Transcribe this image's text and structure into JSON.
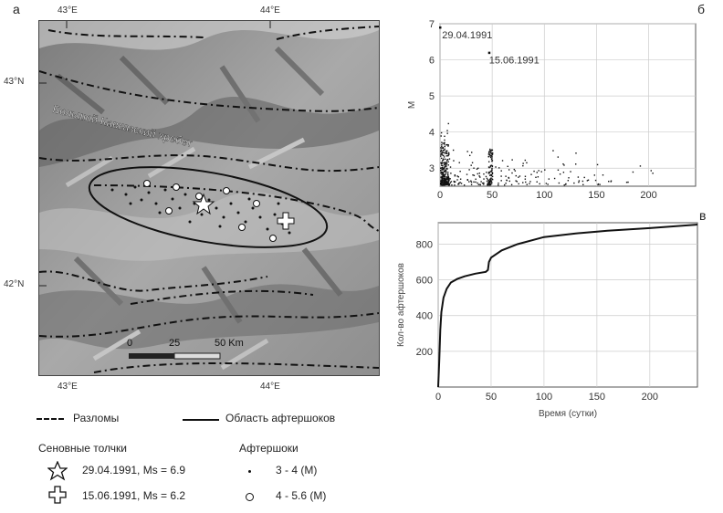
{
  "panels": {
    "a": "а",
    "b": "б",
    "c": "в"
  },
  "map": {
    "lon_top": [
      "43°E",
      "44°E"
    ],
    "lon_bottom": [
      "43°E",
      "44°E"
    ],
    "lat": [
      "43°N",
      "42°N"
    ],
    "ridge_label": "Большой Кавказский хребет",
    "scale": {
      "t0": "0",
      "t1": "25",
      "t2": "50 Km"
    }
  },
  "legend": {
    "faults": "Разломы",
    "aftershock_area": "Область афтершоков",
    "main_shocks_title": "Сеновные толчки",
    "aftershocks_title": "Афтершоки",
    "shock1": "29.04.1991, Ms = 6.9",
    "shock2": "15.06.1991, Ms = 6.2",
    "af1": "3 - 4 (M)",
    "af2": "4 - 5.6 (M)"
  },
  "chart_data": [
    {
      "type": "scatter",
      "panel": "б",
      "ylabel": "M",
      "xlim": [
        0,
        245
      ],
      "ylim": [
        2.5,
        7
      ],
      "xticks": [
        0,
        50,
        100,
        150,
        200
      ],
      "yticks": [
        3,
        4,
        5,
        6,
        7
      ],
      "grid": true,
      "annotations": [
        "29.04.1991",
        "15.06.1991"
      ],
      "highlight_points": [
        {
          "x": 0,
          "y": 6.9
        },
        {
          "x": 47,
          "y": 6.2
        }
      ]
    },
    {
      "type": "line",
      "panel": "в",
      "xlabel": "Время (сутки)",
      "ylabel": "Кол-во афтершоков",
      "xlim": [
        0,
        245
      ],
      "ylim": [
        0,
        920
      ],
      "xticks": [
        0,
        50,
        100,
        150,
        200
      ],
      "yticks": [
        200,
        400,
        600,
        800
      ],
      "grid": true,
      "x": [
        0,
        1,
        2,
        3,
        5,
        8,
        12,
        18,
        25,
        35,
        45,
        47,
        48,
        50,
        60,
        75,
        100,
        130,
        160,
        200,
        245
      ],
      "y": [
        0,
        150,
        320,
        420,
        500,
        550,
        585,
        605,
        620,
        635,
        645,
        655,
        700,
        725,
        765,
        800,
        840,
        860,
        875,
        890,
        910
      ]
    }
  ]
}
